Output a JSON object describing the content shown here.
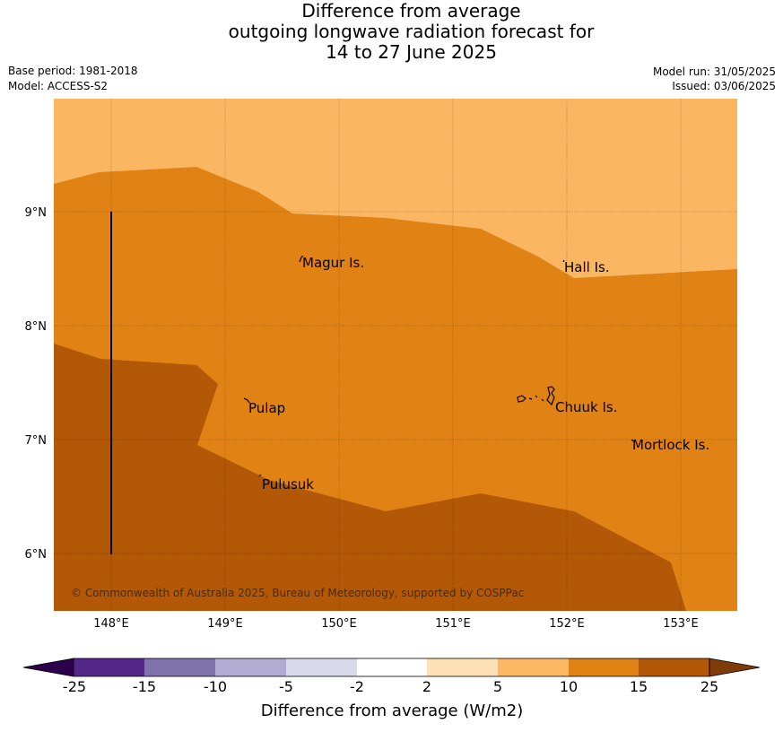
{
  "title_lines": [
    "Difference from average",
    "outgoing longwave radiation forecast for",
    "14 to 27 June 2025"
  ],
  "base_period": "Base period: 1981-2018",
  "model": "Model: ACCESS-S2",
  "model_run": "Model run: 31/05/2025",
  "issued": "Issued: 03/06/2025",
  "copyright": "© Commonwealth of Australia 2025, Bureau of Meteorology, supported by COSPPac",
  "map": {
    "lon_labels": [
      "148°E",
      "149°E",
      "150°E",
      "151°E",
      "152°E",
      "153°E"
    ],
    "lat_labels": [
      "9°N",
      "8°N",
      "7°N",
      "6°N"
    ],
    "places": [
      "Magur Is.",
      "Hall Is.",
      "Pulap",
      "Chuuk Is.",
      "Mortlock Is.",
      "Pulusuk"
    ]
  },
  "colors": {
    "band_5_10": "#fbb661",
    "band_10_15": "#e08214",
    "band_15_25": "#b35806"
  },
  "legend": {
    "ticks": [
      "-25",
      "-15",
      "-10",
      "-5",
      "-2",
      "2",
      "5",
      "10",
      "15",
      "25"
    ],
    "colors": [
      "#2d004b",
      "#542788",
      "#8073ac",
      "#b2abd2",
      "#d8daeb",
      "#ffffff",
      "#fee0b6",
      "#fdb863",
      "#e08214",
      "#b35806",
      "#7f3b08"
    ],
    "label": "Difference from average (W/m2)"
  }
}
